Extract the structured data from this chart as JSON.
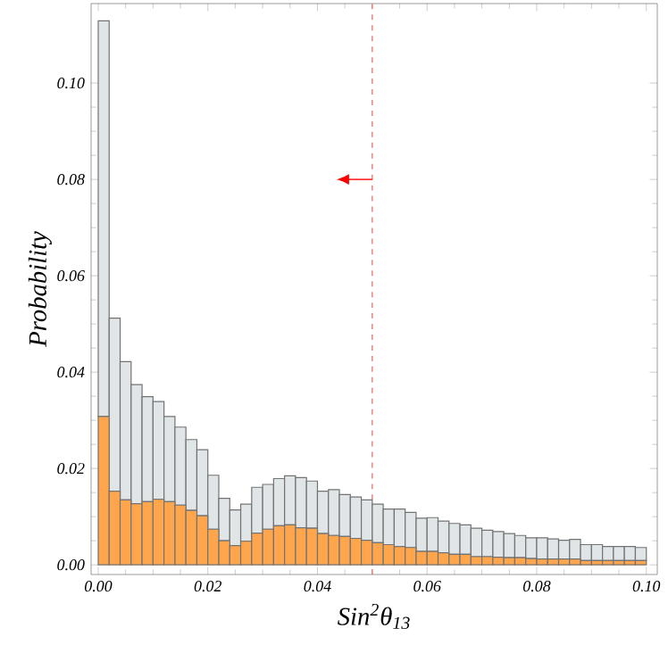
{
  "chart_data": {
    "type": "bar",
    "xlabel": "Sin$^{2}$θ$_{13}$",
    "ylabel": "Probability",
    "x": [
      0.001,
      0.003,
      0.005,
      0.007,
      0.009,
      0.011,
      0.013,
      0.015,
      0.017,
      0.019,
      0.021,
      0.023,
      0.025,
      0.027,
      0.029,
      0.031,
      0.033,
      0.035,
      0.037,
      0.039,
      0.041,
      0.043,
      0.045,
      0.047,
      0.049,
      0.051,
      0.053,
      0.055,
      0.057,
      0.059,
      0.061,
      0.063,
      0.065,
      0.067,
      0.069,
      0.071,
      0.073,
      0.075,
      0.077,
      0.079,
      0.081,
      0.083,
      0.085,
      0.087,
      0.089,
      0.091,
      0.093,
      0.095,
      0.097,
      0.099
    ],
    "stacked": true,
    "series": [
      {
        "color": "#ffa64d",
        "values": [
          0.0308,
          0.0153,
          0.0135,
          0.0127,
          0.0131,
          0.0136,
          0.0131,
          0.0124,
          0.0113,
          0.0102,
          0.0074,
          0.005,
          0.004,
          0.0049,
          0.0066,
          0.0074,
          0.0081,
          0.0083,
          0.0077,
          0.0076,
          0.0065,
          0.0061,
          0.0059,
          0.0055,
          0.0051,
          0.0046,
          0.0042,
          0.0038,
          0.0036,
          0.0028,
          0.0028,
          0.0025,
          0.0022,
          0.0022,
          0.0017,
          0.0017,
          0.0016,
          0.0015,
          0.0015,
          0.0013,
          0.0012,
          0.0012,
          0.0012,
          0.0012,
          0.0009,
          0.0009,
          0.0009,
          0.0009,
          0.0009,
          0.0009
        ]
      },
      {
        "color": "#e0e5e8",
        "values": [
          0.0821,
          0.0359,
          0.0287,
          0.0247,
          0.0218,
          0.0203,
          0.0177,
          0.0162,
          0.0147,
          0.0137,
          0.0112,
          0.0088,
          0.0074,
          0.0077,
          0.0095,
          0.0093,
          0.0098,
          0.0102,
          0.0104,
          0.0098,
          0.0088,
          0.0095,
          0.0087,
          0.0086,
          0.0084,
          0.008,
          0.0074,
          0.0078,
          0.0073,
          0.0069,
          0.007,
          0.0066,
          0.0064,
          0.0061,
          0.0059,
          0.0055,
          0.0053,
          0.005,
          0.0046,
          0.0043,
          0.0044,
          0.0042,
          0.0039,
          0.0041,
          0.0033,
          0.0033,
          0.0029,
          0.0029,
          0.0029,
          0.0027
        ]
      }
    ],
    "xlim": [
      -0.0013,
      0.102
    ],
    "ylim": [
      -0.002,
      0.1165
    ],
    "xticks": [
      {
        "value": 0,
        "label": "0.00"
      },
      {
        "value": 0.02,
        "label": "0.02"
      },
      {
        "value": 0.04,
        "label": "0.04"
      },
      {
        "value": 0.06,
        "label": "0.06"
      },
      {
        "value": 0.08,
        "label": "0.08"
      },
      {
        "value": 0.1,
        "label": "0.10"
      }
    ],
    "yticks": [
      {
        "value": 0,
        "label": "0.00"
      },
      {
        "value": 0.02,
        "label": "0.02"
      },
      {
        "value": 0.04,
        "label": "0.04"
      },
      {
        "value": 0.06,
        "label": "0.06"
      },
      {
        "value": 0.08,
        "label": "0.08"
      },
      {
        "value": 0.1,
        "label": "0.10"
      }
    ],
    "ref_lines": [
      {
        "axis": "x",
        "value": 0.05,
        "color": "#e06666",
        "line_style": "dashed"
      }
    ],
    "grid": false
  }
}
